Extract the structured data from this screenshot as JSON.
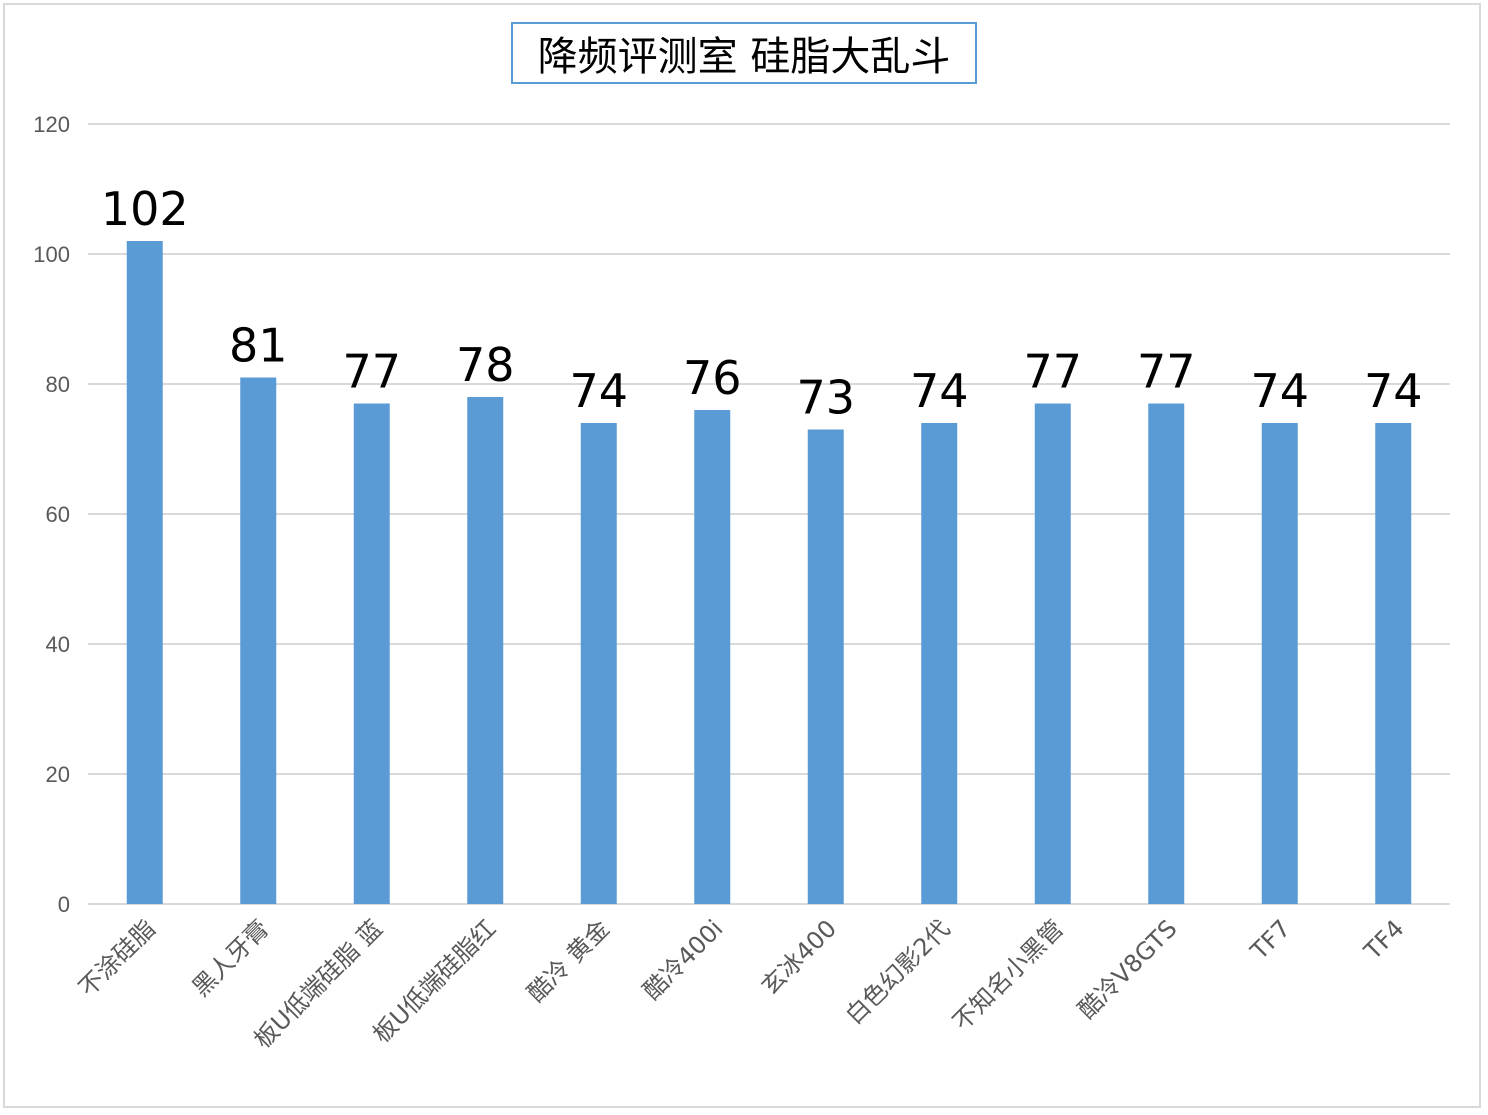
{
  "chart_data": {
    "type": "bar",
    "title": "降频评测室 硅脂大乱斗",
    "categories": [
      "不涂硅脂",
      "黑人牙膏",
      "板U低端硅脂 蓝",
      "板U低端硅脂红",
      "酷冷 黄金",
      "酷冷400i",
      "玄冰400",
      "白色幻影2代",
      "不知名小黑管",
      "酷冷V8GTS",
      "TF7",
      "TF4"
    ],
    "values": [
      102,
      81,
      77,
      78,
      74,
      76,
      73,
      74,
      77,
      77,
      74,
      74
    ],
    "ylim": [
      0,
      120
    ],
    "yticks": [
      0,
      20,
      40,
      60,
      80,
      100,
      120
    ],
    "xlabel": "",
    "ylabel": "",
    "grid": true,
    "legend": "none",
    "bar_color": "#5b9bd5",
    "grid_color": "#d9d9d9"
  }
}
